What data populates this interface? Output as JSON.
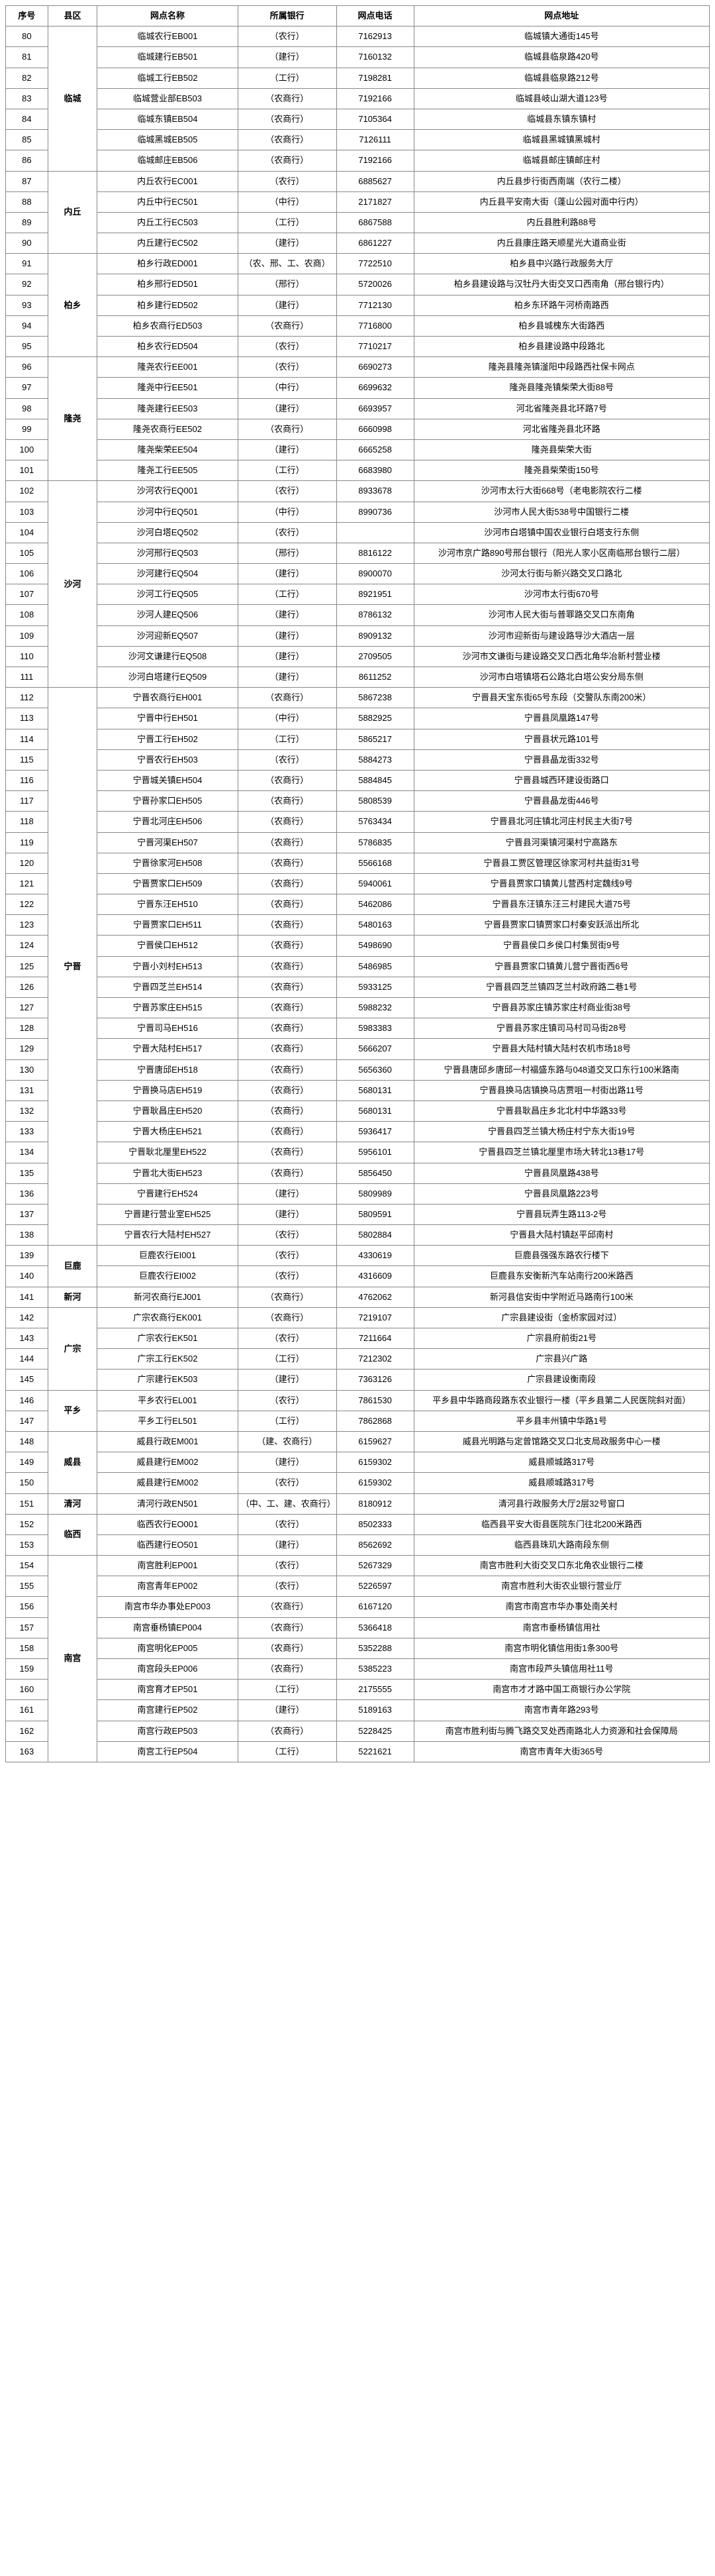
{
  "headers": {
    "seq": "序号",
    "county": "县区",
    "name": "网点名称",
    "bank": "所属银行",
    "phone": "网点电话",
    "addr": "网点地址"
  },
  "counties": [
    {
      "start": 80,
      "span": 7,
      "label": "临城"
    },
    {
      "start": 87,
      "span": 4,
      "label": "内丘"
    },
    {
      "start": 91,
      "span": 5,
      "label": "柏乡"
    },
    {
      "start": 96,
      "span": 6,
      "label": "隆尧"
    },
    {
      "start": 102,
      "span": 10,
      "label": "沙河"
    },
    {
      "start": 112,
      "span": 27,
      "label": "宁晋"
    },
    {
      "start": 139,
      "span": 2,
      "label": "巨鹿"
    },
    {
      "start": 141,
      "span": 1,
      "label": "新河"
    },
    {
      "start": 142,
      "span": 4,
      "label": "广宗"
    },
    {
      "start": 146,
      "span": 2,
      "label": "平乡"
    },
    {
      "start": 148,
      "span": 3,
      "label": "威县"
    },
    {
      "start": 151,
      "span": 1,
      "label": "清河"
    },
    {
      "start": 152,
      "span": 2,
      "label": "临西"
    },
    {
      "start": 154,
      "span": 10,
      "label": "南宫"
    }
  ],
  "rows": [
    {
      "seq": 80,
      "name": "临城农行EB001",
      "bank": "（农行）",
      "phone": "7162913",
      "addr": "临城镇大通街145号"
    },
    {
      "seq": 81,
      "name": "临城建行EB501",
      "bank": "（建行）",
      "phone": "7160132",
      "addr": "临城县临泉路420号"
    },
    {
      "seq": 82,
      "name": "临城工行EB502",
      "bank": "（工行）",
      "phone": "7198281",
      "addr": "临城县临泉路212号"
    },
    {
      "seq": 83,
      "name": "临城营业部EB503",
      "bank": "（农商行）",
      "phone": "7192166",
      "addr": "临城县岐山湖大道123号"
    },
    {
      "seq": 84,
      "name": "临城东镇EB504",
      "bank": "（农商行）",
      "phone": "7105364",
      "addr": "临城县东镇东镇村"
    },
    {
      "seq": 85,
      "name": "临城黑城EB505",
      "bank": "（农商行）",
      "phone": "7126111",
      "addr": "临城县黑城镇黑城村"
    },
    {
      "seq": 86,
      "name": "临城邮庄EB506",
      "bank": "（农商行）",
      "phone": "7192166",
      "addr": "临城县邮庄镇邮庄村"
    },
    {
      "seq": 87,
      "name": "内丘农行EC001",
      "bank": "（农行）",
      "phone": "6885627",
      "addr": "内丘县步行街西南端（农行二楼）"
    },
    {
      "seq": 88,
      "name": "内丘中行EC501",
      "bank": "（中行）",
      "phone": "2171827",
      "addr": "内丘县平安南大街（蓬山公园对面中行内）"
    },
    {
      "seq": 89,
      "name": "内丘工行EC503",
      "bank": "（工行）",
      "phone": "6867588",
      "addr": "内丘县胜利路88号"
    },
    {
      "seq": 90,
      "name": "内丘建行EC502",
      "bank": "（建行）",
      "phone": "6861227",
      "addr": "内丘县康庄路天顺星光大道商业街"
    },
    {
      "seq": 91,
      "name": "柏乡行政ED001",
      "bank": "（农、邢、工、农商）",
      "phone": "7722510",
      "addr": "柏乡县中兴路行政服务大厅"
    },
    {
      "seq": 92,
      "name": "柏乡邢行ED501",
      "bank": "（邢行）",
      "phone": "5720026",
      "addr": "柏乡县建设路与汉牡丹大街交叉口西南角（邢台银行内）"
    },
    {
      "seq": 93,
      "name": "柏乡建行ED502",
      "bank": "（建行）",
      "phone": "7712130",
      "addr": "柏乡东环路午河桥南路西"
    },
    {
      "seq": 94,
      "name": "柏乡农商行ED503",
      "bank": "（农商行）",
      "phone": "7716800",
      "addr": "柏乡县城槐东大街路西"
    },
    {
      "seq": 95,
      "name": "柏乡农行ED504",
      "bank": "（农行）",
      "phone": "7710217",
      "addr": "柏乡县建设路中段路北"
    },
    {
      "seq": 96,
      "name": "隆尧农行EE001",
      "bank": "（农行）",
      "phone": "6690273",
      "addr": "隆尧县隆尧镇滏阳中段路西社保卡网点"
    },
    {
      "seq": 97,
      "name": "隆尧中行EE501",
      "bank": "（中行）",
      "phone": "6699632",
      "addr": "隆尧县隆尧镇柴荣大街88号"
    },
    {
      "seq": 98,
      "name": "隆尧建行EE503",
      "bank": "（建行）",
      "phone": "6693957",
      "addr": "河北省隆尧县北环路7号"
    },
    {
      "seq": 99,
      "name": "隆尧农商行EE502",
      "bank": "（农商行）",
      "phone": "6660998",
      "addr": "河北省隆尧县北环路"
    },
    {
      "seq": 100,
      "name": "隆尧柴荣EE504",
      "bank": "（建行）",
      "phone": "6665258",
      "addr": "隆尧县柴荣大街"
    },
    {
      "seq": 101,
      "name": "隆尧工行EE505",
      "bank": "（工行）",
      "phone": "6683980",
      "addr": "隆尧县柴荣街150号"
    },
    {
      "seq": 102,
      "name": "沙河农行EQ001",
      "bank": "（农行）",
      "phone": "8933678",
      "addr": "沙河市太行大街668号（老电影院农行二楼"
    },
    {
      "seq": 103,
      "name": "沙河中行EQ501",
      "bank": "（中行）",
      "phone": "8990736",
      "addr": "沙河市人民大街538号中国银行二楼"
    },
    {
      "seq": 104,
      "name": "沙河白塔EQ502",
      "bank": "（农行）",
      "phone": "",
      "addr": "沙河市白塔镇中国农业银行白塔支行东侧"
    },
    {
      "seq": 105,
      "name": "沙河邢行EQ503",
      "bank": "（邢行）",
      "phone": "8816122",
      "addr": "沙河市京广路890号邢台银行（阳光人家小区南临邢台银行二层）"
    },
    {
      "seq": 106,
      "name": "沙河建行EQ504",
      "bank": "（建行）",
      "phone": "8900070",
      "addr": "沙河太行街与新兴路交叉口路北"
    },
    {
      "seq": 107,
      "name": "沙河工行EQ505",
      "bank": "（工行）",
      "phone": "8921951",
      "addr": "沙河市太行街670号"
    },
    {
      "seq": 108,
      "name": "沙河人建EQ506",
      "bank": "（建行）",
      "phone": "8786132",
      "addr": "沙河市人民大街与普罪路交叉口东南角"
    },
    {
      "seq": 109,
      "name": "沙河迎新EQ507",
      "bank": "（建行）",
      "phone": "8909132",
      "addr": "沙河市迎新街与建设路导沙大酒店一层"
    },
    {
      "seq": 110,
      "name": "沙河文谦建行EQ508",
      "bank": "（建行）",
      "phone": "2709505",
      "addr": "沙河市文谦街与建设路交叉口西北角华冶新村营业楼"
    },
    {
      "seq": 111,
      "name": "沙河白塔建行EQ509",
      "bank": "（建行）",
      "phone": "8611252",
      "addr": "沙河市白塔镇塔石公路北白塔公安分局东侧"
    },
    {
      "seq": 112,
      "name": "宁晋农商行EH001",
      "bank": "（农商行）",
      "phone": "5867238",
      "addr": "宁晋县天宝东街65号东段（交警队东南200米）"
    },
    {
      "seq": 113,
      "name": "宁晋中行EH501",
      "bank": "（中行）",
      "phone": "5882925",
      "addr": "宁晋县凤凰路147号"
    },
    {
      "seq": 114,
      "name": "宁晋工行EH502",
      "bank": "（工行）",
      "phone": "5865217",
      "addr": "宁晋县状元路101号"
    },
    {
      "seq": 115,
      "name": "宁晋农行EH503",
      "bank": "（农行）",
      "phone": "5884273",
      "addr": "宁晋县晶龙街332号"
    },
    {
      "seq": 116,
      "name": "宁晋城关镇EH504",
      "bank": "（农商行）",
      "phone": "5884845",
      "addr": "宁晋县城西环建设街路口"
    },
    {
      "seq": 117,
      "name": "宁晋孙家口EH505",
      "bank": "（农商行）",
      "phone": "5808539",
      "addr": "宁晋县晶龙街446号"
    },
    {
      "seq": 118,
      "name": "宁晋北河庄EH506",
      "bank": "（农商行）",
      "phone": "5763434",
      "addr": "宁晋县北河庄镇北河庄村民主大街7号"
    },
    {
      "seq": 119,
      "name": "宁晋河渠EH507",
      "bank": "（农商行）",
      "phone": "5786835",
      "addr": "宁晋县河渠镇河渠村宁高路东"
    },
    {
      "seq": 120,
      "name": "宁晋徐家河EH508",
      "bank": "（农商行）",
      "phone": "5566168",
      "addr": "宁晋县工贾区管理区徐家河村共益街31号"
    },
    {
      "seq": 121,
      "name": "宁晋贾家口EH509",
      "bank": "（农商行）",
      "phone": "5940061",
      "addr": "宁晋县贾家口镇黄儿营西村定魏线9号"
    },
    {
      "seq": 122,
      "name": "宁晋东汪EH510",
      "bank": "（农商行）",
      "phone": "5462086",
      "addr": "宁晋县东汪镇东汪三村建民大道75号"
    },
    {
      "seq": 123,
      "name": "宁晋贾家口EH511",
      "bank": "（农商行）",
      "phone": "5480163",
      "addr": "宁晋县贾家口镇贾家口村秦安跃派出所北"
    },
    {
      "seq": 124,
      "name": "宁晋侯口EH512",
      "bank": "（农商行）",
      "phone": "5498690",
      "addr": "宁晋县侯口乡侯口村集贸街9号"
    },
    {
      "seq": 125,
      "name": "宁晋小刘村EH513",
      "bank": "（农商行）",
      "phone": "5486985",
      "addr": "宁晋县贾家口镇黄儿营宁晋街西6号"
    },
    {
      "seq": 126,
      "name": "宁晋四芝兰EH514",
      "bank": "（农商行）",
      "phone": "5933125",
      "addr": "宁晋县四芝兰镇四芝兰村政府路二巷1号"
    },
    {
      "seq": 127,
      "name": "宁晋苏家庄EH515",
      "bank": "（农商行）",
      "phone": "5988232",
      "addr": "宁晋县苏家庄镇苏家庄村商业街38号"
    },
    {
      "seq": 128,
      "name": "宁晋司马EH516",
      "bank": "（农商行）",
      "phone": "5983383",
      "addr": "宁晋县苏家庄镇司马村司马街28号"
    },
    {
      "seq": 129,
      "name": "宁晋大陆村EH517",
      "bank": "（农商行）",
      "phone": "5666207",
      "addr": "宁晋县大陆村镇大陆村农机市场18号"
    },
    {
      "seq": 130,
      "name": "宁晋唐邱EH518",
      "bank": "（农商行）",
      "phone": "5656360",
      "addr": "宁晋县唐邱乡唐邱一村福盛东路与048道交叉口东行100米路南"
    },
    {
      "seq": 131,
      "name": "宁晋换马店EH519",
      "bank": "（农商行）",
      "phone": "5680131",
      "addr": "宁晋县换马店镇换马店贾咀一村街出路11号"
    },
    {
      "seq": 132,
      "name": "宁晋耿昌庄EH520",
      "bank": "（农商行）",
      "phone": "5680131",
      "addr": "宁晋县耿昌庄乡北北村中华路33号"
    },
    {
      "seq": 133,
      "name": "宁晋大杨庄EH521",
      "bank": "（农商行）",
      "phone": "5936417",
      "addr": "宁晋县四芝兰镇大杨庄村宁东大街19号"
    },
    {
      "seq": 134,
      "name": "宁晋耿北厘里EH522",
      "bank": "（农商行）",
      "phone": "5956101",
      "addr": "宁晋县四芝兰镇北厘里市场大转北13巷17号"
    },
    {
      "seq": 135,
      "name": "宁晋北大街EH523",
      "bank": "（农商行）",
      "phone": "5856450",
      "addr": "宁晋县凤凰路438号"
    },
    {
      "seq": 136,
      "name": "宁晋建行EH524",
      "bank": "（建行）",
      "phone": "5809989",
      "addr": "宁晋县凤凰路223号"
    },
    {
      "seq": 137,
      "name": "宁晋建行营业室EH525",
      "bank": "（建行）",
      "phone": "5809591",
      "addr": "宁晋县玩弄生路113-2号"
    },
    {
      "seq": 138,
      "name": "宁晋农行大陆村EH527",
      "bank": "（农行）",
      "phone": "5802884",
      "addr": "宁晋县大陆村镇赵平邱南村"
    },
    {
      "seq": 139,
      "name": "巨鹿农行EI001",
      "bank": "（农行）",
      "phone": "4330619",
      "addr": "巨鹿县强强东路农行楼下"
    },
    {
      "seq": 140,
      "name": "巨鹿农行EI002",
      "bank": "（农行）",
      "phone": "4316609",
      "addr": "巨鹿县东安衡新汽车站南行200米路西"
    },
    {
      "seq": 141,
      "name": "新河农商行EJ001",
      "bank": "（农商行）",
      "phone": "4762062",
      "addr": "新河县信安街中学附近马路南行100米"
    },
    {
      "seq": 142,
      "name": "广宗农商行EK001",
      "bank": "（农商行）",
      "phone": "7219107",
      "addr": "广宗县建设街（金桥家园对过）"
    },
    {
      "seq": 143,
      "name": "广宗农行EK501",
      "bank": "（农行）",
      "phone": "7211664",
      "addr": "广宗县府前街21号"
    },
    {
      "seq": 144,
      "name": "广宗工行EK502",
      "bank": "（工行）",
      "phone": "7212302",
      "addr": "广宗县兴广路"
    },
    {
      "seq": 145,
      "name": "广宗建行EK503",
      "bank": "（建行）",
      "phone": "7363126",
      "addr": "广宗县建设衡南段"
    },
    {
      "seq": 146,
      "name": "平乡农行EL001",
      "bank": "（农行）",
      "phone": "7861530",
      "addr": "平乡县中华路商段路东农业银行一楼（平乡县第二人民医院斜对面）"
    },
    {
      "seq": 147,
      "name": "平乡工行EL501",
      "bank": "（工行）",
      "phone": "7862868",
      "addr": "平乡县丰州镇中华路1号"
    },
    {
      "seq": 148,
      "name": "威县行政EM001",
      "bank": "（建、农商行）",
      "phone": "6159627",
      "addr": "威县光明路与定曾馆路交叉口北支局政服务中心一楼"
    },
    {
      "seq": 149,
      "name": "威县建行EM002",
      "bank": "（建行）",
      "phone": "6159302",
      "addr": "威县顺城路317号"
    },
    {
      "seq": 150,
      "name": "威县建行EM002",
      "bank": "（农行）",
      "phone": "6159302",
      "addr": "威县顺城路317号"
    },
    {
      "seq": 151,
      "name": "清河行政EN501",
      "bank": "（中、工、建、农商行）",
      "phone": "8180912",
      "addr": "清河县行政服务大厅2层32号窗口"
    },
    {
      "seq": 152,
      "name": "临西农行EO001",
      "bank": "（农行）",
      "phone": "8502333",
      "addr": "临西县平安大街县医院东门往北200米路西"
    },
    {
      "seq": 153,
      "name": "临西建行EO501",
      "bank": "（建行）",
      "phone": "8562692",
      "addr": "临西县珠玑大路南段东侧"
    },
    {
      "seq": 154,
      "name": "南宫胜利EP001",
      "bank": "（农行）",
      "phone": "5267329",
      "addr": "南宫市胜利大街交叉口东北角农业银行二楼"
    },
    {
      "seq": 155,
      "name": "南宫青年EP002",
      "bank": "（农行）",
      "phone": "5226597",
      "addr": "南宫市胜利大街农业银行营业厅"
    },
    {
      "seq": 156,
      "name": "南宫市华办事处EP003",
      "bank": "（农商行）",
      "phone": "6167120",
      "addr": "南宫市南宫市华办事处南关村"
    },
    {
      "seq": 157,
      "name": "南宫垂杨镇EP004",
      "bank": "（农商行）",
      "phone": "5366418",
      "addr": "南宫市垂杨镇信用社"
    },
    {
      "seq": 158,
      "name": "南宫明化EP005",
      "bank": "（农商行）",
      "phone": "5352288",
      "addr": "南宫市明化镇信用街1条300号"
    },
    {
      "seq": 159,
      "name": "南宫段头EP006",
      "bank": "（农商行）",
      "phone": "5385223",
      "addr": "南宫市段芦头镇信用社11号"
    },
    {
      "seq": 160,
      "name": "南宫育才EP501",
      "bank": "（工行）",
      "phone": "2175555",
      "addr": "南宫市才才路中国工商银行办公学院"
    },
    {
      "seq": 161,
      "name": "南宫建行EP502",
      "bank": "（建行）",
      "phone": "5189163",
      "addr": "南宫市青年路293号"
    },
    {
      "seq": 162,
      "name": "南宫行政EP503",
      "bank": "（农商行）",
      "phone": "5228425",
      "addr": "南宫市胜利街与腾飞路交叉处西南路北人力资源和社会保障局"
    },
    {
      "seq": 163,
      "name": "南宫工行EP504",
      "bank": "（工行）",
      "phone": "5221621",
      "addr": "南宫市青年大街365号"
    }
  ]
}
